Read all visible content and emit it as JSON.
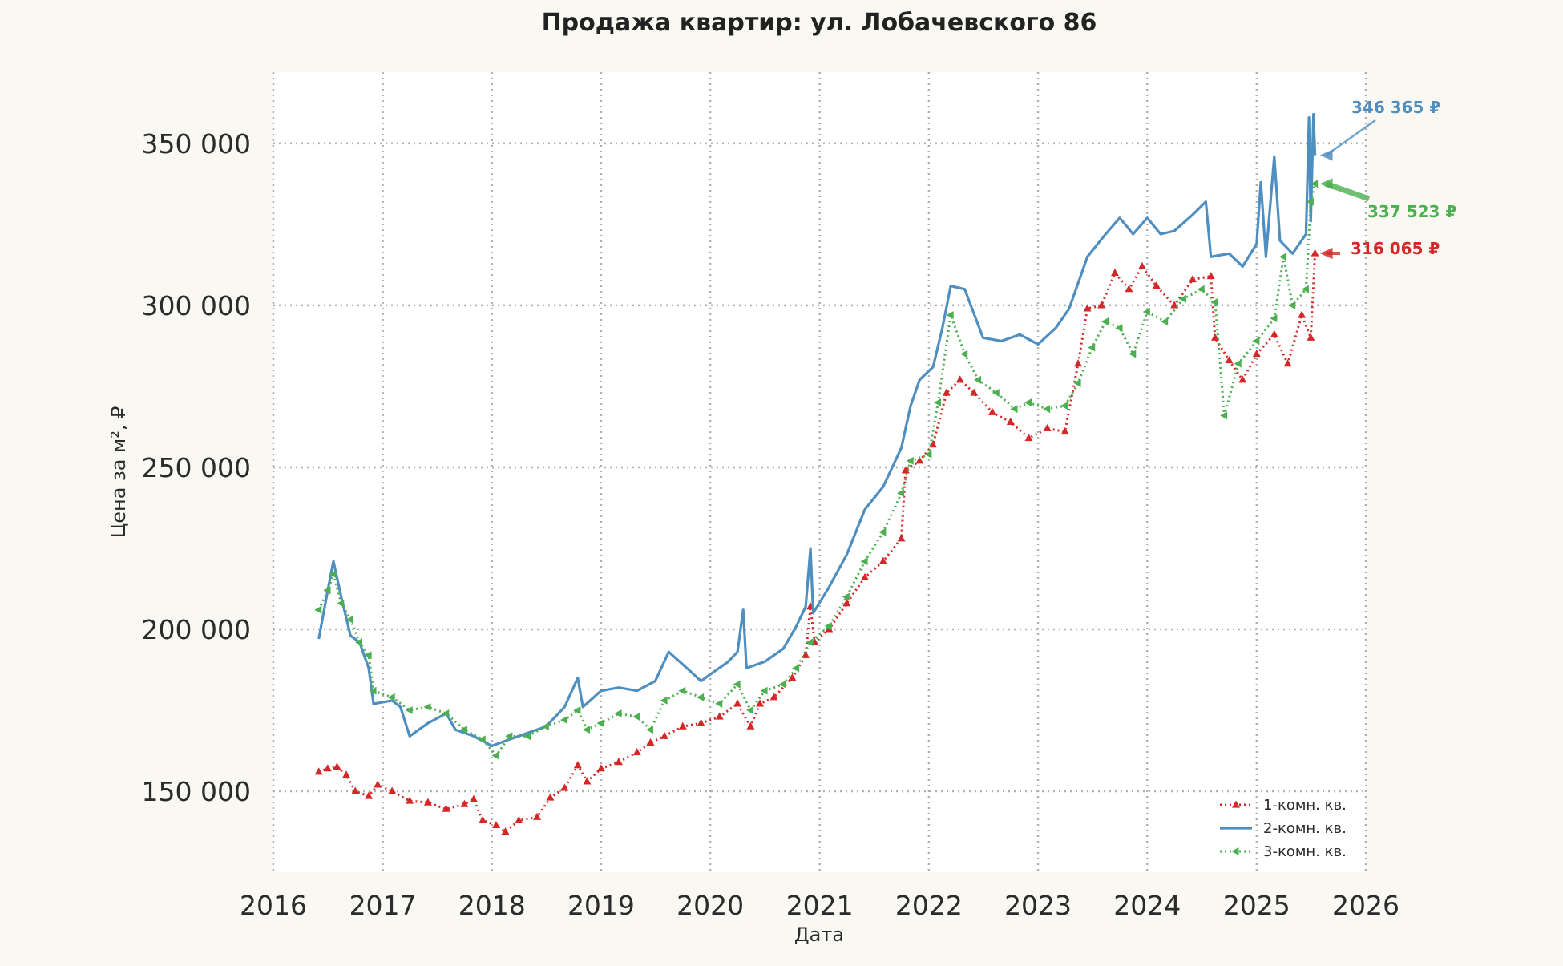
{
  "chart_data": {
    "type": "line",
    "title": "Продажа квартир: ул. Лобачевского 86",
    "xlabel": "Дата",
    "ylabel": "Цена за м², ₽",
    "x_axis_type": "date",
    "xlim": [
      "2016-01-01",
      "2026-01-01"
    ],
    "ylim": [
      125000,
      372000
    ],
    "x_ticks": [
      "2016",
      "2017",
      "2018",
      "2019",
      "2020",
      "2021",
      "2022",
      "2023",
      "2024",
      "2025",
      "2026"
    ],
    "y_ticks": [
      {
        "value": 150000,
        "label": "150 000"
      },
      {
        "value": 200000,
        "label": "200 000"
      },
      {
        "value": 250000,
        "label": "250 000"
      },
      {
        "value": 300000,
        "label": "300 000"
      },
      {
        "value": 350000,
        "label": "350 000"
      }
    ],
    "grid": true,
    "legend_position": "bottom-right",
    "series": [
      {
        "name": "1-комн. кв.",
        "color": "#d62728",
        "style": "dotted-triangle",
        "last_value_label": "316 065 ₽",
        "points": [
          [
            "2016-06-01",
            156000
          ],
          [
            "2016-07-01",
            157000
          ],
          [
            "2016-08-01",
            157500
          ],
          [
            "2016-09-01",
            155000
          ],
          [
            "2016-10-01",
            150000
          ],
          [
            "2016-11-15",
            148500
          ],
          [
            "2016-12-15",
            152000
          ],
          [
            "2017-02-01",
            150000
          ],
          [
            "2017-04-01",
            147000
          ],
          [
            "2017-06-01",
            146500
          ],
          [
            "2017-08-01",
            144500
          ],
          [
            "2017-10-01",
            146000
          ],
          [
            "2017-11-01",
            147500
          ],
          [
            "2017-12-01",
            141000
          ],
          [
            "2018-01-15",
            139500
          ],
          [
            "2018-02-15",
            137500
          ],
          [
            "2018-04-01",
            141000
          ],
          [
            "2018-06-01",
            142000
          ],
          [
            "2018-07-15",
            148000
          ],
          [
            "2018-09-01",
            151000
          ],
          [
            "2018-10-15",
            158000
          ],
          [
            "2018-11-15",
            153000
          ],
          [
            "2019-01-01",
            157000
          ],
          [
            "2019-03-01",
            159000
          ],
          [
            "2019-05-01",
            162000
          ],
          [
            "2019-06-15",
            165000
          ],
          [
            "2019-08-01",
            167000
          ],
          [
            "2019-10-01",
            170000
          ],
          [
            "2019-12-01",
            171000
          ],
          [
            "2020-02-01",
            173000
          ],
          [
            "2020-04-01",
            177000
          ],
          [
            "2020-05-15",
            170000
          ],
          [
            "2020-06-15",
            177000
          ],
          [
            "2020-08-01",
            179000
          ],
          [
            "2020-10-01",
            185000
          ],
          [
            "2020-11-15",
            192000
          ],
          [
            "2020-12-01",
            207000
          ],
          [
            "2020-12-15",
            196000
          ],
          [
            "2021-02-01",
            200000
          ],
          [
            "2021-04-01",
            208000
          ],
          [
            "2021-06-01",
            216000
          ],
          [
            "2021-08-01",
            221000
          ],
          [
            "2021-10-01",
            228000
          ],
          [
            "2021-10-15",
            249000
          ],
          [
            "2021-12-01",
            252000
          ],
          [
            "2022-01-15",
            257000
          ],
          [
            "2022-03-01",
            273000
          ],
          [
            "2022-04-15",
            277000
          ],
          [
            "2022-06-01",
            273000
          ],
          [
            "2022-08-01",
            267000
          ],
          [
            "2022-10-01",
            264000
          ],
          [
            "2022-12-01",
            259000
          ],
          [
            "2023-02-01",
            262000
          ],
          [
            "2023-04-01",
            261000
          ],
          [
            "2023-05-15",
            282000
          ],
          [
            "2023-06-15",
            299000
          ],
          [
            "2023-08-01",
            300000
          ],
          [
            "2023-09-15",
            310000
          ],
          [
            "2023-11-01",
            305000
          ],
          [
            "2023-12-15",
            312000
          ],
          [
            "2024-02-01",
            306000
          ],
          [
            "2024-04-01",
            300000
          ],
          [
            "2024-06-01",
            308000
          ],
          [
            "2024-08-01",
            309000
          ],
          [
            "2024-08-15",
            290000
          ],
          [
            "2024-10-01",
            283000
          ],
          [
            "2024-11-15",
            277000
          ],
          [
            "2025-01-01",
            285000
          ],
          [
            "2025-03-01",
            291000
          ],
          [
            "2025-04-15",
            282000
          ],
          [
            "2025-06-01",
            297000
          ],
          [
            "2025-07-01",
            290000
          ],
          [
            "2025-07-15",
            316065
          ]
        ]
      },
      {
        "name": "2-комн. кв.",
        "color": "#4f8fc0",
        "style": "solid",
        "last_value_label": "346 365 ₽",
        "points": [
          [
            "2016-06-01",
            197000
          ],
          [
            "2016-07-01",
            212000
          ],
          [
            "2016-07-20",
            221000
          ],
          [
            "2016-08-15",
            210000
          ],
          [
            "2016-09-15",
            198000
          ],
          [
            "2016-10-15",
            196000
          ],
          [
            "2016-11-15",
            188000
          ],
          [
            "2016-12-01",
            177000
          ],
          [
            "2017-02-01",
            178000
          ],
          [
            "2017-03-01",
            176000
          ],
          [
            "2017-04-01",
            167000
          ],
          [
            "2017-06-01",
            171000
          ],
          [
            "2017-08-01",
            174000
          ],
          [
            "2017-09-01",
            169000
          ],
          [
            "2017-11-01",
            167000
          ],
          [
            "2018-01-01",
            164000
          ],
          [
            "2018-03-01",
            166000
          ],
          [
            "2018-05-01",
            168000
          ],
          [
            "2018-07-01",
            170000
          ],
          [
            "2018-09-01",
            176000
          ],
          [
            "2018-10-15",
            185000
          ],
          [
            "2018-11-01",
            176000
          ],
          [
            "2019-01-01",
            181000
          ],
          [
            "2019-03-01",
            182000
          ],
          [
            "2019-05-01",
            181000
          ],
          [
            "2019-07-01",
            184000
          ],
          [
            "2019-08-15",
            193000
          ],
          [
            "2019-10-15",
            188000
          ],
          [
            "2019-12-01",
            184000
          ],
          [
            "2020-01-15",
            187000
          ],
          [
            "2020-03-01",
            190000
          ],
          [
            "2020-04-01",
            193000
          ],
          [
            "2020-04-20",
            206000
          ],
          [
            "2020-05-01",
            188000
          ],
          [
            "2020-07-01",
            190000
          ],
          [
            "2020-09-01",
            194000
          ],
          [
            "2020-10-15",
            201000
          ],
          [
            "2020-11-15",
            207000
          ],
          [
            "2020-12-01",
            225000
          ],
          [
            "2020-12-10",
            205000
          ],
          [
            "2021-02-01",
            213000
          ],
          [
            "2021-04-01",
            223000
          ],
          [
            "2021-06-01",
            237000
          ],
          [
            "2021-08-01",
            244000
          ],
          [
            "2021-10-01",
            256000
          ],
          [
            "2021-11-01",
            269000
          ],
          [
            "2021-12-01",
            277000
          ],
          [
            "2022-01-15",
            281000
          ],
          [
            "2022-02-15",
            293000
          ],
          [
            "2022-03-15",
            306000
          ],
          [
            "2022-05-01",
            305000
          ],
          [
            "2022-07-01",
            290000
          ],
          [
            "2022-09-01",
            289000
          ],
          [
            "2022-11-01",
            291000
          ],
          [
            "2023-01-01",
            288000
          ],
          [
            "2023-03-01",
            293000
          ],
          [
            "2023-04-15",
            299000
          ],
          [
            "2023-06-15",
            315000
          ],
          [
            "2023-08-15",
            322000
          ],
          [
            "2023-10-01",
            327000
          ],
          [
            "2023-11-15",
            322000
          ],
          [
            "2024-01-01",
            327000
          ],
          [
            "2024-02-15",
            322000
          ],
          [
            "2024-04-01",
            323000
          ],
          [
            "2024-06-01",
            328000
          ],
          [
            "2024-07-15",
            332000
          ],
          [
            "2024-08-01",
            315000
          ],
          [
            "2024-10-01",
            316000
          ],
          [
            "2024-11-15",
            312000
          ],
          [
            "2025-01-01",
            319000
          ],
          [
            "2025-01-15",
            338000
          ],
          [
            "2025-02-01",
            315000
          ],
          [
            "2025-03-01",
            346000
          ],
          [
            "2025-03-20",
            320000
          ],
          [
            "2025-05-01",
            316000
          ],
          [
            "2025-06-15",
            322000
          ],
          [
            "2025-06-25",
            358000
          ],
          [
            "2025-07-01",
            326000
          ],
          [
            "2025-07-10",
            359000
          ],
          [
            "2025-07-15",
            346365
          ]
        ]
      },
      {
        "name": "3-комн. кв.",
        "color": "#4caf50",
        "style": "dotted-left-triangle",
        "last_value_label": "337 523 ₽",
        "points": [
          [
            "2016-06-01",
            206000
          ],
          [
            "2016-07-01",
            212000
          ],
          [
            "2016-07-20",
            217000
          ],
          [
            "2016-08-15",
            208000
          ],
          [
            "2016-09-15",
            203000
          ],
          [
            "2016-10-15",
            196000
          ],
          [
            "2016-11-15",
            192000
          ],
          [
            "2016-12-01",
            181000
          ],
          [
            "2017-02-01",
            179000
          ],
          [
            "2017-04-01",
            175000
          ],
          [
            "2017-06-01",
            176000
          ],
          [
            "2017-08-01",
            174000
          ],
          [
            "2017-10-01",
            169000
          ],
          [
            "2017-12-01",
            166000
          ],
          [
            "2018-01-15",
            161000
          ],
          [
            "2018-03-01",
            167000
          ],
          [
            "2018-05-01",
            167000
          ],
          [
            "2018-07-01",
            170000
          ],
          [
            "2018-09-01",
            172000
          ],
          [
            "2018-10-15",
            175000
          ],
          [
            "2018-11-15",
            169000
          ],
          [
            "2019-01-01",
            171000
          ],
          [
            "2019-03-01",
            174000
          ],
          [
            "2019-05-01",
            173000
          ],
          [
            "2019-06-15",
            169000
          ],
          [
            "2019-08-01",
            178000
          ],
          [
            "2019-10-01",
            181000
          ],
          [
            "2019-12-01",
            179000
          ],
          [
            "2020-02-01",
            177000
          ],
          [
            "2020-04-01",
            183000
          ],
          [
            "2020-05-15",
            175000
          ],
          [
            "2020-07-01",
            181000
          ],
          [
            "2020-09-01",
            183000
          ],
          [
            "2020-10-15",
            188000
          ],
          [
            "2020-12-01",
            196000
          ],
          [
            "2021-02-01",
            201000
          ],
          [
            "2021-04-01",
            210000
          ],
          [
            "2021-06-01",
            221000
          ],
          [
            "2021-08-01",
            230000
          ],
          [
            "2021-10-01",
            242000
          ],
          [
            "2021-11-01",
            252000
          ],
          [
            "2022-01-01",
            254000
          ],
          [
            "2022-02-01",
            270000
          ],
          [
            "2022-03-15",
            297000
          ],
          [
            "2022-05-01",
            285000
          ],
          [
            "2022-06-15",
            277000
          ],
          [
            "2022-08-15",
            273000
          ],
          [
            "2022-10-15",
            268000
          ],
          [
            "2022-12-01",
            270000
          ],
          [
            "2023-02-01",
            268000
          ],
          [
            "2023-04-01",
            269000
          ],
          [
            "2023-05-15",
            276000
          ],
          [
            "2023-07-01",
            287000
          ],
          [
            "2023-08-15",
            295000
          ],
          [
            "2023-10-01",
            293000
          ],
          [
            "2023-11-15",
            285000
          ],
          [
            "2024-01-01",
            298000
          ],
          [
            "2024-03-01",
            295000
          ],
          [
            "2024-05-01",
            302000
          ],
          [
            "2024-07-01",
            305000
          ],
          [
            "2024-08-15",
            301000
          ],
          [
            "2024-09-15",
            266000
          ],
          [
            "2024-11-01",
            282000
          ],
          [
            "2025-01-01",
            289000
          ],
          [
            "2025-03-01",
            296000
          ],
          [
            "2025-04-01",
            315000
          ],
          [
            "2025-05-01",
            300000
          ],
          [
            "2025-06-15",
            305000
          ],
          [
            "2025-07-01",
            332000
          ],
          [
            "2025-07-15",
            337523
          ]
        ]
      }
    ]
  }
}
